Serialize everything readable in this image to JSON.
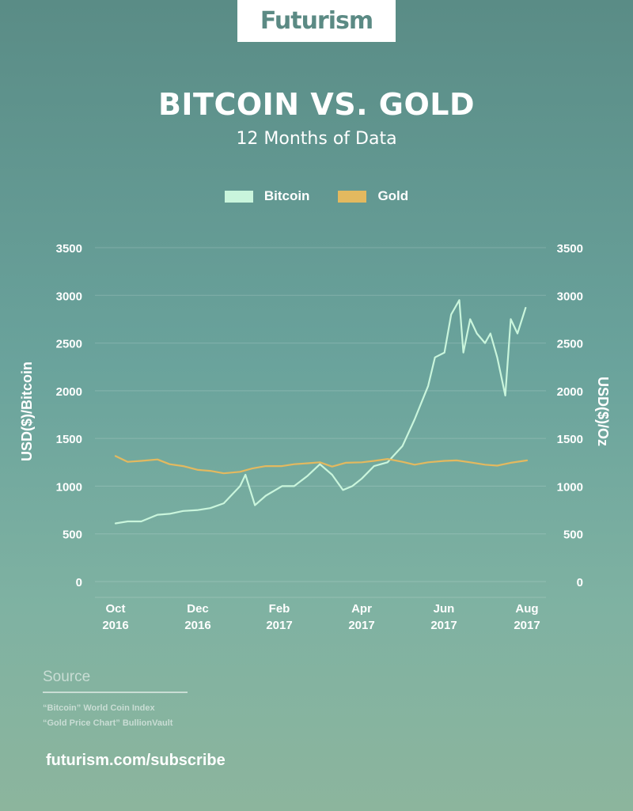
{
  "brand": {
    "logo_text": "Futurism"
  },
  "header": {
    "title": "BITCOIN VS. GOLD",
    "subtitle": "12 Months of Data"
  },
  "legend": [
    {
      "label": "Bitcoin",
      "color": "#c9f5dc"
    },
    {
      "label": "Gold",
      "color": "#e3b95f"
    }
  ],
  "chart_data": {
    "type": "line",
    "title": "BITCOIN VS. GOLD",
    "subtitle": "12 Months of Data",
    "ylabel_left": "USD($)/Bitcoin",
    "ylabel_right": "USD($)/Oz",
    "ylim": [
      0,
      3500
    ],
    "y_ticks": [
      0,
      500,
      1000,
      1500,
      2000,
      2500,
      3000,
      3500
    ],
    "x_ticks": [
      {
        "month": "Oct",
        "year": "2016"
      },
      {
        "month": "Dec",
        "year": "2016"
      },
      {
        "month": "Feb",
        "year": "2017"
      },
      {
        "month": "Apr",
        "year": "2017"
      },
      {
        "month": "Jun",
        "year": "2017"
      },
      {
        "month": "Aug",
        "year": "2017"
      }
    ],
    "x_range": [
      "2016-10-01",
      "2017-08-01"
    ],
    "grid": true,
    "legend_position": "top-center",
    "series": [
      {
        "name": "Bitcoin",
        "color": "#c9f5dc",
        "x": [
          "2016-10-01",
          "2016-10-10",
          "2016-10-20",
          "2016-11-01",
          "2016-11-10",
          "2016-11-20",
          "2016-12-01",
          "2016-12-10",
          "2016-12-20",
          "2017-01-01",
          "2017-01-05",
          "2017-01-12",
          "2017-01-20",
          "2017-02-01",
          "2017-02-10",
          "2017-02-20",
          "2017-03-01",
          "2017-03-10",
          "2017-03-18",
          "2017-03-25",
          "2017-04-01",
          "2017-04-10",
          "2017-04-20",
          "2017-05-01",
          "2017-05-10",
          "2017-05-20",
          "2017-05-25",
          "2017-06-01",
          "2017-06-06",
          "2017-06-12",
          "2017-06-15",
          "2017-06-20",
          "2017-06-25",
          "2017-07-01",
          "2017-07-05",
          "2017-07-10",
          "2017-07-16",
          "2017-07-20",
          "2017-07-25",
          "2017-07-31"
        ],
        "y": [
          610,
          630,
          630,
          700,
          710,
          740,
          750,
          770,
          820,
          1000,
          1120,
          800,
          900,
          1000,
          1000,
          1110,
          1230,
          1120,
          960,
          1000,
          1080,
          1210,
          1250,
          1420,
          1700,
          2050,
          2350,
          2400,
          2800,
          2950,
          2400,
          2750,
          2600,
          2500,
          2600,
          2350,
          1950,
          2750,
          2600,
          2870
        ]
      },
      {
        "name": "Gold",
        "color": "#e3b95f",
        "x": [
          "2016-10-01",
          "2016-10-10",
          "2016-10-20",
          "2016-11-01",
          "2016-11-10",
          "2016-11-20",
          "2016-12-01",
          "2016-12-10",
          "2016-12-20",
          "2017-01-01",
          "2017-01-10",
          "2017-01-20",
          "2017-02-01",
          "2017-02-10",
          "2017-02-20",
          "2017-03-01",
          "2017-03-10",
          "2017-03-20",
          "2017-04-01",
          "2017-04-10",
          "2017-04-20",
          "2017-05-01",
          "2017-05-10",
          "2017-05-20",
          "2017-06-01",
          "2017-06-10",
          "2017-06-20",
          "2017-07-01",
          "2017-07-10",
          "2017-07-20",
          "2017-08-01"
        ],
        "y": [
          1315,
          1255,
          1265,
          1280,
          1230,
          1210,
          1170,
          1160,
          1135,
          1150,
          1185,
          1210,
          1210,
          1230,
          1240,
          1250,
          1205,
          1245,
          1250,
          1265,
          1285,
          1255,
          1225,
          1250,
          1265,
          1270,
          1250,
          1225,
          1215,
          1245,
          1270
        ]
      }
    ]
  },
  "source": {
    "heading": "Source",
    "lines": [
      "“Bitcoin” World Coin Index",
      "“Gold Price Chart” BullionVault"
    ]
  },
  "footer": {
    "link": "futurism.com/subscribe"
  }
}
